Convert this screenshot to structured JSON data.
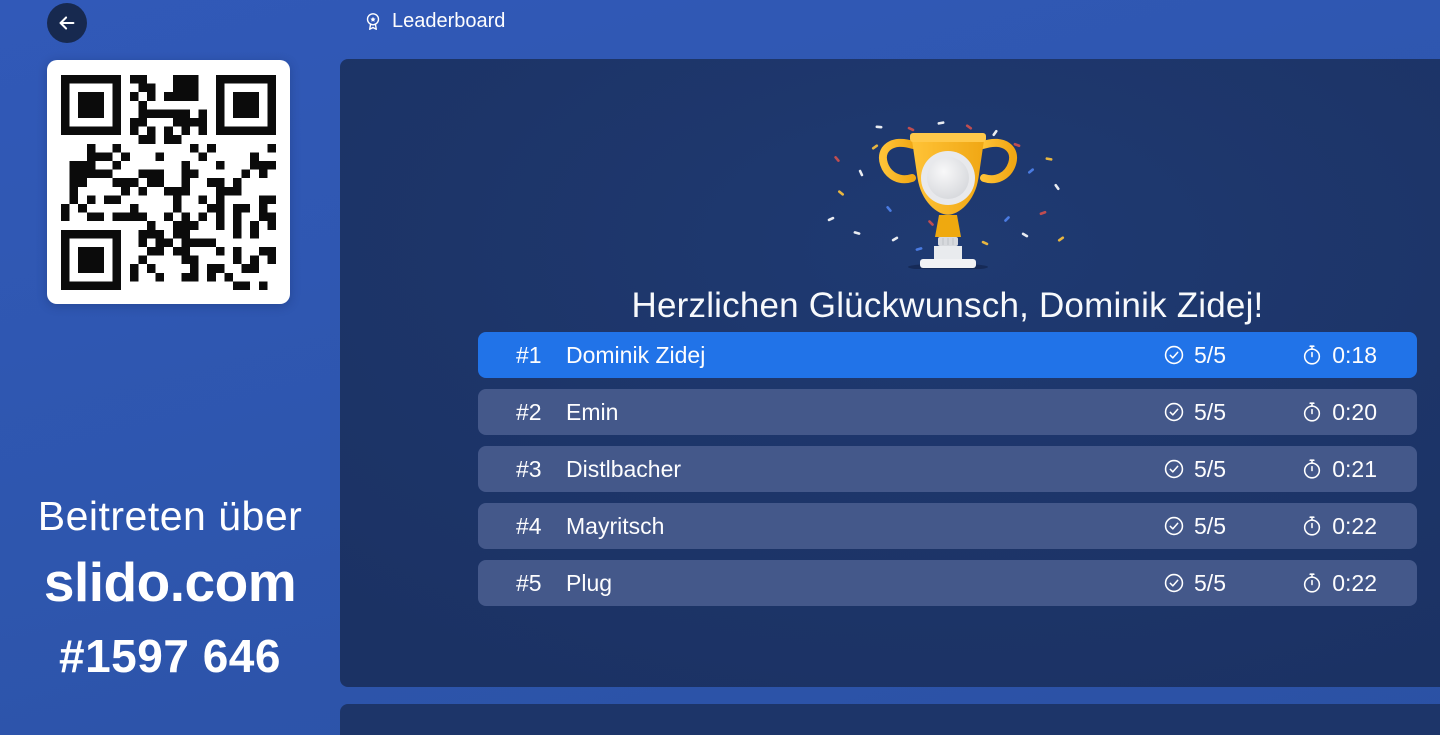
{
  "colors": {
    "background_blue": "#2E56AE",
    "panel_navy": "#1D3569",
    "highlight_blue": "#2173E8",
    "row_bg": "#44588A",
    "back_button_bg": "#17294F",
    "trophy_gold": "#F6B51E",
    "text": "#FFFFFF"
  },
  "header": {
    "title": "Leaderboard",
    "icon": "medal"
  },
  "sidebar": {
    "qr": "qr-code",
    "join_line1": "Beitreten über",
    "join_brand": "slido.com",
    "join_code": "#1597 646"
  },
  "main": {
    "congrats_heading": "Herzlichen Glückwunsch, Dominik Zidej!",
    "leaderboard": [
      {
        "rank": "#1",
        "name": "Dominik Zidej",
        "score": "5/5",
        "time": "0:18",
        "highlighted": true
      },
      {
        "rank": "#2",
        "name": "Emin",
        "score": "5/5",
        "time": "0:20",
        "highlighted": false
      },
      {
        "rank": "#3",
        "name": "Distlbacher",
        "score": "5/5",
        "time": "0:21",
        "highlighted": false
      },
      {
        "rank": "#4",
        "name": "Mayritsch",
        "score": "5/5",
        "time": "0:22",
        "highlighted": false
      },
      {
        "rank": "#5",
        "name": "Plug",
        "score": "5/5",
        "time": "0:22",
        "highlighted": false
      }
    ]
  },
  "icons": {
    "back": "arrow-left",
    "leaderboard": "medal",
    "score": "check-circle",
    "time": "stopwatch",
    "celebration": "trophy-confetti"
  }
}
